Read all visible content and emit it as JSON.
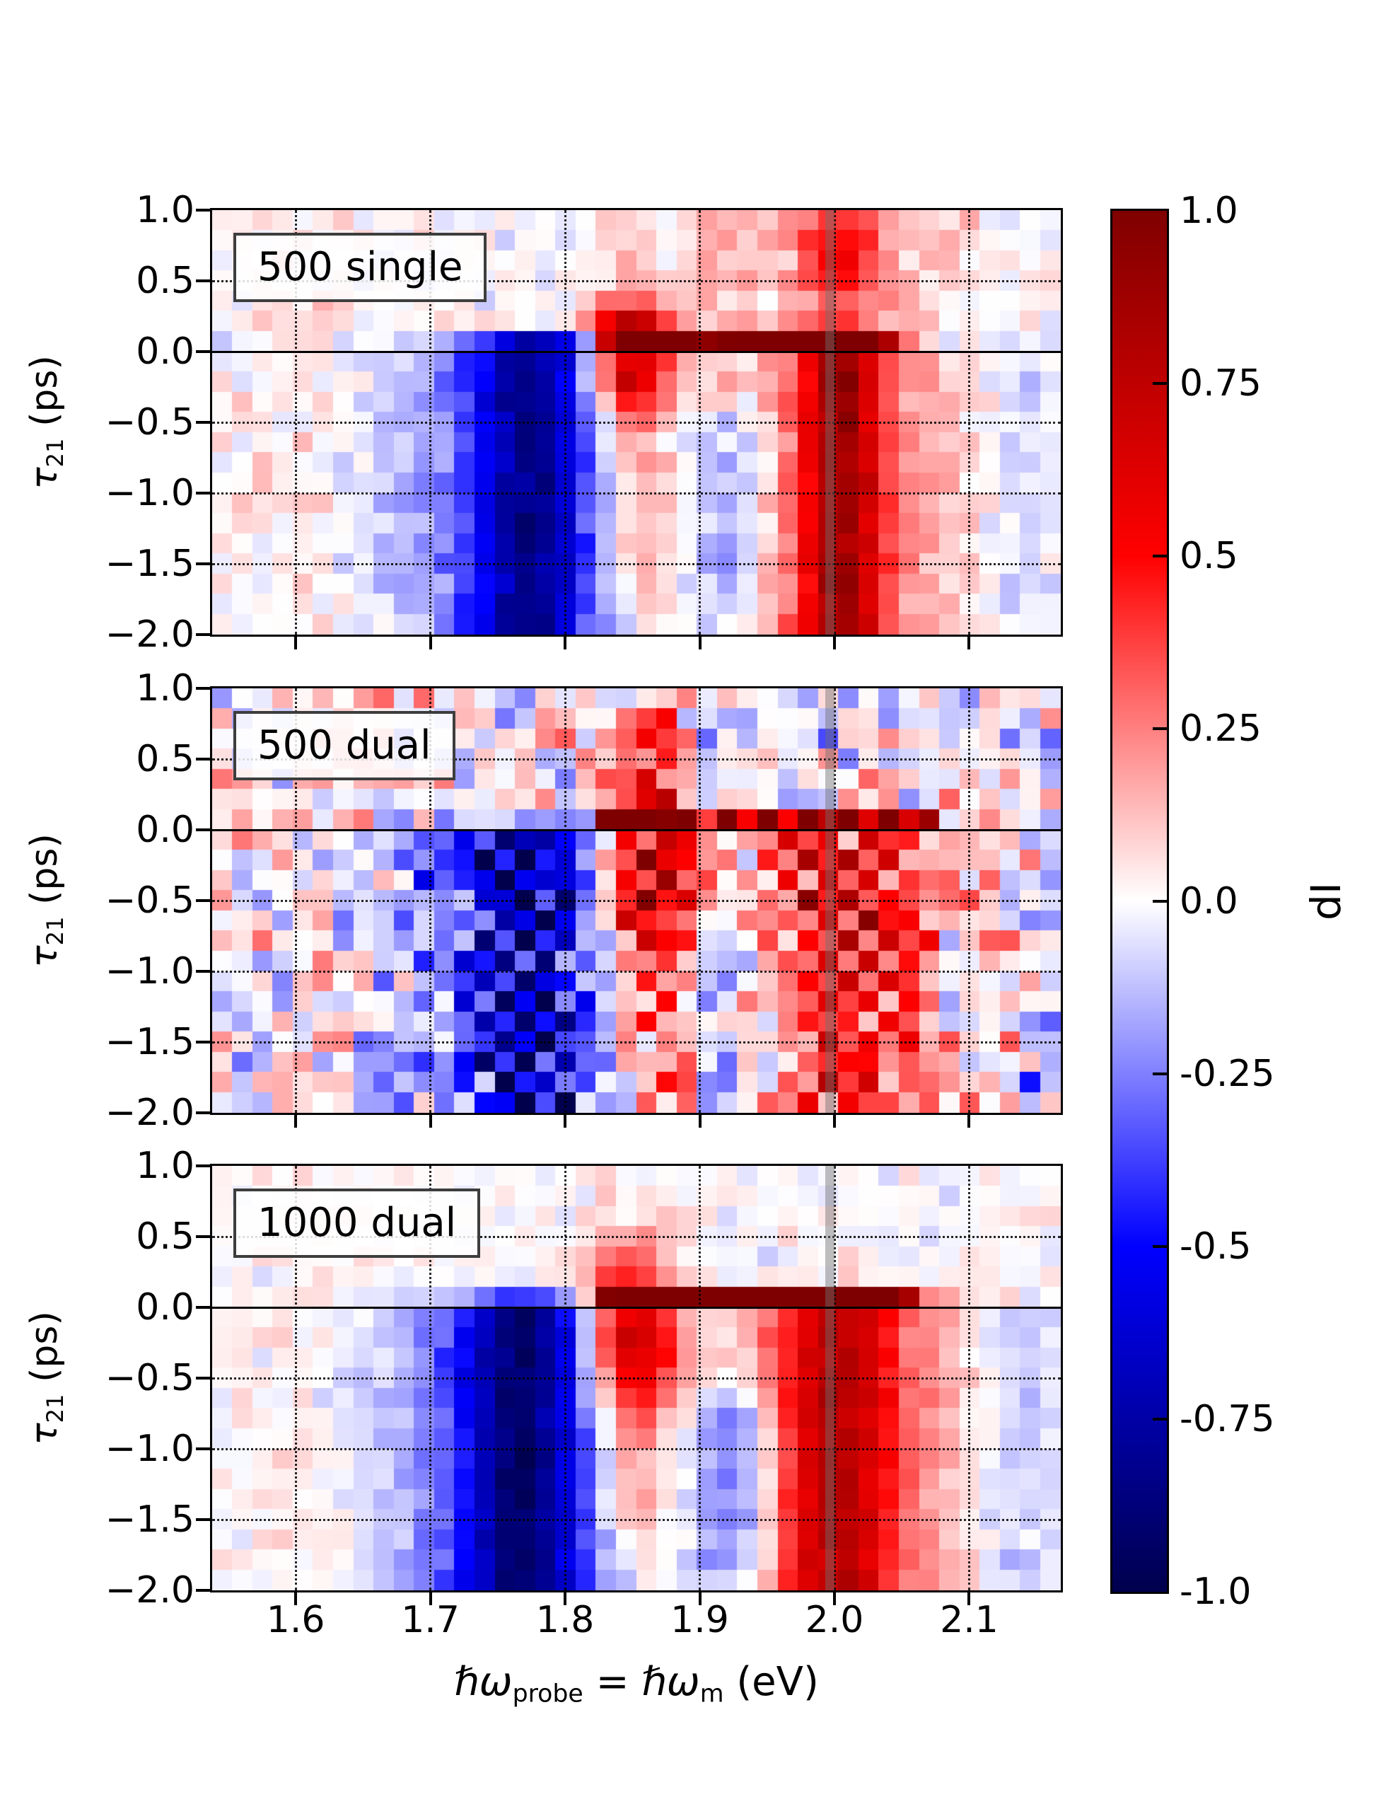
{
  "figure": {
    "background": "#ffffff"
  },
  "chart_data": {
    "type": "heatmap",
    "xlabel": {
      "hbar_omega_1": "ℏω",
      "sub_1": "probe",
      "equals": " = ",
      "hbar_omega_2": "ℏω",
      "sub_2": "m",
      "unit": " (eV)"
    },
    "ylabel": {
      "tau": "τ",
      "sub": "21",
      "unit": " (ps)"
    },
    "x_range": [
      1.538,
      2.168
    ],
    "y_range": [
      -2.0,
      1.0
    ],
    "grid": {
      "cols": 42,
      "rows": 21
    },
    "x_ticks": {
      "labels": [
        "1.6",
        "1.7",
        "1.8",
        "1.9",
        "2.0",
        "2.1"
      ],
      "values": [
        1.6,
        1.7,
        1.8,
        1.9,
        2.0,
        2.1
      ]
    },
    "y_ticks": {
      "labels": [
        "1.0",
        "0.5",
        "0.0",
        "−0.5",
        "−1.0",
        "−1.5",
        "−2.0"
      ],
      "values": [
        1.0,
        0.5,
        0.0,
        -0.5,
        -1.0,
        -1.5,
        -2.0
      ]
    },
    "grid_lines": {
      "x_dotted": [
        1.6,
        1.7,
        1.8,
        1.9,
        2.0,
        2.1
      ],
      "y_dotted": [
        0.5,
        -0.5,
        -1.0,
        -1.5
      ],
      "y_solid": [
        0.0
      ]
    },
    "marker_line_x": 2.0,
    "colors": {
      "marker_line": "rgba(110,110,110,0.45)",
      "grid": "#000000",
      "frame": "#000000",
      "label_box_border": "#3d3d3d",
      "cmap_top": "#7f0000",
      "cmap_mid": "#ffffff",
      "cmap_bottom": "#00004d"
    },
    "colorbar": {
      "label": "dI",
      "cmap": "seismic",
      "tick_labels": [
        "1.0",
        "0.75",
        "0.5",
        "0.25",
        "0.0",
        "-0.25",
        "-0.5",
        "-0.75",
        "-1.0"
      ],
      "tick_values": [
        1.0,
        0.75,
        0.5,
        0.25,
        0.0,
        -0.25,
        -0.5,
        -0.75,
        -1.0
      ]
    },
    "panels": [
      {
        "label": "500 single",
        "noise": 0.05,
        "checker": 0,
        "seed": 11,
        "features": [
          {
            "amp": -0.6,
            "x0": 1.775,
            "sx": 0.03,
            "yr": [
              -2.1,
              0.18,
              0.12
            ]
          },
          {
            "amp": -0.25,
            "x0": 1.76,
            "sx": 0.07,
            "yr": [
              -2.1,
              0.18,
              0.15
            ]
          },
          {
            "amp": 0.95,
            "xr": [
              1.815,
              2.055,
              0.03
            ],
            "yr": [
              0.0,
              0.22,
              0.06
            ]
          },
          {
            "amp": 0.5,
            "xr": [
              1.82,
              1.88,
              0.02
            ],
            "yr": [
              0.18,
              0.34,
              0.08
            ]
          },
          {
            "amp": 0.85,
            "x0": 1.85,
            "sx": 0.022,
            "y0": -0.12,
            "sy": 0.3
          },
          {
            "amp": 0.25,
            "x0": 1.855,
            "sx": 0.018,
            "yr": [
              -2.1,
              -0.4,
              0.5
            ]
          },
          {
            "amp": 0.6,
            "x0": 2.005,
            "sx": 0.02,
            "yr": [
              -2.1,
              0.25,
              0.1
            ]
          },
          {
            "amp": 0.3,
            "x0": 2.01,
            "sx": 0.055,
            "yr": [
              -2.1,
              0.25,
              0.1
            ]
          },
          {
            "amp": 0.35,
            "x0": 2.005,
            "sx": 0.02,
            "yr": [
              0.25,
              1.05,
              0.15
            ]
          },
          {
            "amp": 0.18,
            "x0": 2.01,
            "sx": 0.06,
            "yr": [
              0.25,
              1.05,
              0.15
            ]
          },
          {
            "amp": -0.2,
            "x0": 1.925,
            "sx": 0.018,
            "yr": [
              -2.1,
              -0.25,
              0.3
            ]
          },
          {
            "amp": -0.1,
            "xr": [
              2.1,
              2.18,
              0.03
            ],
            "yr": [
              -2.1,
              0.1,
              0.3
            ]
          },
          {
            "amp": -0.13,
            "xr": [
              2.07,
              2.18,
              0.02
            ],
            "yr": [
              0.0,
              0.16,
              0.05
            ]
          },
          {
            "amp": 0.05,
            "xr": [
              1.53,
              1.67,
              0.05
            ],
            "yr": [
              -2.1,
              1.05,
              0.1
            ]
          },
          {
            "amp": 0.08,
            "xr": [
              1.8,
              1.98,
              0.05
            ],
            "yr": [
              0.25,
              1.05,
              0.15
            ]
          }
        ]
      },
      {
        "label": "500 dual",
        "noise": 0.13,
        "checker": 0.35,
        "seed": 23,
        "features": [
          {
            "amp": -0.55,
            "x0": 1.775,
            "sx": 0.035,
            "yr": [
              -2.1,
              0.1,
              0.1
            ]
          },
          {
            "amp": -0.2,
            "x0": 1.76,
            "sx": 0.075,
            "yr": [
              -2.1,
              0.1,
              0.15
            ]
          },
          {
            "amp": 0.85,
            "xr": [
              1.815,
              2.09,
              0.03
            ],
            "yr": [
              0.0,
              0.18,
              0.06
            ]
          },
          {
            "amp": 0.4,
            "x0": 1.865,
            "sx": 0.02,
            "yr": [
              -2.1,
              0.95,
              0.15
            ]
          },
          {
            "amp": 0.5,
            "x0": 1.855,
            "sx": 0.03,
            "y0": -0.25,
            "sy": 0.4
          },
          {
            "amp": 0.45,
            "x0": 2.01,
            "sx": 0.045,
            "yr": [
              -2.1,
              0.12,
              0.15
            ]
          },
          {
            "amp": 0.15,
            "x0": 2.0,
            "sx": 0.08,
            "yr": [
              -1.2,
              0.12,
              0.4
            ]
          },
          {
            "amp": -0.15,
            "x0": 1.92,
            "sx": 0.02,
            "yr": [
              -2.1,
              -0.3,
              0.3
            ]
          },
          {
            "amp": -0.12,
            "x0": 1.9,
            "sx": 0.015,
            "yr": [
              0.15,
              0.95,
              0.1
            ]
          },
          {
            "amp": -0.12,
            "xr": [
              2.12,
              2.18,
              0.03
            ],
            "yr": [
              -2.1,
              1.05,
              0.2
            ]
          },
          {
            "amp": 0.06,
            "xr": [
              1.56,
              1.68,
              0.04
            ],
            "yr": [
              -2.1,
              1.05,
              0.1
            ]
          }
        ]
      },
      {
        "label": "1000 dual",
        "noise": 0.04,
        "checker": 0,
        "seed": 5,
        "features": [
          {
            "amp": -0.65,
            "x0": 1.77,
            "sx": 0.032,
            "yr": [
              -2.1,
              0.12,
              0.1
            ]
          },
          {
            "amp": -0.28,
            "x0": 1.755,
            "sx": 0.065,
            "yr": [
              -2.1,
              0.12,
              0.12
            ]
          },
          {
            "amp": 0.95,
            "xr": [
              1.815,
              2.07,
              0.025
            ],
            "yr": [
              0.02,
              0.21,
              0.05
            ]
          },
          {
            "amp": 0.8,
            "x0": 1.85,
            "sx": 0.025,
            "y0": -0.25,
            "sy": 0.45
          },
          {
            "amp": 0.25,
            "x0": 1.85,
            "sx": 0.02,
            "yr": [
              -2.1,
              -0.8,
              0.6
            ]
          },
          {
            "amp": 0.55,
            "x0": 2.0,
            "sx": 0.03,
            "yr": [
              -2.1,
              0.22,
              0.08
            ]
          },
          {
            "amp": 0.25,
            "x0": 2.02,
            "sx": 0.06,
            "yr": [
              -2.1,
              0.22,
              0.1
            ]
          },
          {
            "amp": -0.3,
            "x0": 1.925,
            "sx": 0.022,
            "yr": [
              -2.1,
              -0.45,
              0.3
            ]
          },
          {
            "amp": -0.12,
            "xr": [
              2.09,
              2.18,
              0.03
            ],
            "yr": [
              -2.1,
              0.15,
              0.2
            ]
          },
          {
            "amp": 0.04,
            "xr": [
              1.54,
              1.68,
              0.05
            ],
            "yr": [
              -2.1,
              1.05,
              0.1
            ]
          }
        ]
      }
    ]
  }
}
